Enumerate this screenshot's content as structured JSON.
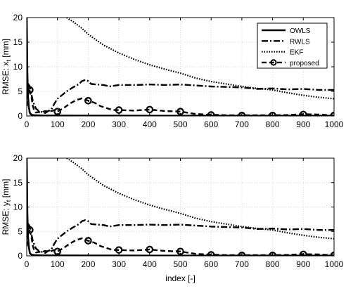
{
  "chart_data": [
    {
      "type": "line",
      "ylabel": "RMSE: x",
      "ylabel_sub": "t",
      "ylabel_unit": "[mm]",
      "xlabel": "",
      "xlim": [
        0,
        1000
      ],
      "ylim": [
        0,
        20
      ],
      "xticks": [
        "0",
        "100",
        "200",
        "300",
        "400",
        "500",
        "600",
        "700",
        "800",
        "900",
        "1000"
      ],
      "yticks": [
        "0",
        "5",
        "10",
        "15",
        "20"
      ],
      "grid": true,
      "legend_position": "top-right",
      "series": [
        {
          "name": "OWLS",
          "style": "solid",
          "points": [
            [
              0,
              20
            ],
            [
              2,
              9
            ],
            [
              4,
              4
            ],
            [
              7,
              1.8
            ],
            [
              10,
              0.6
            ],
            [
              15,
              0.25
            ],
            [
              25,
              0.15
            ],
            [
              50,
              0.1
            ],
            [
              100,
              0.08
            ],
            [
              200,
              0.07
            ],
            [
              300,
              0.06
            ],
            [
              400,
              0.05
            ],
            [
              500,
              0.05
            ],
            [
              600,
              0.05
            ],
            [
              700,
              0.05
            ],
            [
              800,
              0.05
            ],
            [
              900,
              0.05
            ],
            [
              1000,
              0.05
            ]
          ]
        },
        {
          "name": "RWLS",
          "style": "dashdot",
          "points": [
            [
              0,
              4
            ],
            [
              5,
              6.5
            ],
            [
              10,
              6
            ],
            [
              15,
              4.5
            ],
            [
              20,
              3
            ],
            [
              30,
              1.5
            ],
            [
              40,
              1
            ],
            [
              50,
              0.8
            ],
            [
              60,
              0.6
            ],
            [
              70,
              1
            ],
            [
              80,
              1.3
            ],
            [
              90,
              2.5
            ],
            [
              100,
              3.5
            ],
            [
              110,
              4
            ],
            [
              120,
              4.5
            ],
            [
              130,
              5
            ],
            [
              150,
              5.8
            ],
            [
              170,
              6.5
            ],
            [
              180,
              7.1
            ],
            [
              190,
              7.3
            ],
            [
              200,
              7.1
            ],
            [
              210,
              6.5
            ],
            [
              230,
              6.4
            ],
            [
              250,
              6.3
            ],
            [
              270,
              6
            ],
            [
              300,
              6.3
            ],
            [
              350,
              6.3
            ],
            [
              400,
              6.4
            ],
            [
              450,
              6.3
            ],
            [
              500,
              6.4
            ],
            [
              550,
              6.2
            ],
            [
              600,
              6
            ],
            [
              650,
              5.9
            ],
            [
              700,
              5.8
            ],
            [
              750,
              5.5
            ],
            [
              800,
              5.6
            ],
            [
              850,
              5.4
            ],
            [
              900,
              5.5
            ],
            [
              950,
              5.3
            ],
            [
              1000,
              5.3
            ]
          ]
        },
        {
          "name": "EKF",
          "style": "dotted",
          "points": [
            [
              130,
              20
            ],
            [
              150,
              19.2
            ],
            [
              180,
              17.8
            ],
            [
              200,
              16.6
            ],
            [
              250,
              14.4
            ],
            [
              300,
              12.8
            ],
            [
              350,
              11.5
            ],
            [
              400,
              10.4
            ],
            [
              450,
              9.5
            ],
            [
              500,
              8.7
            ],
            [
              550,
              7.7
            ],
            [
              600,
              7
            ],
            [
              650,
              6.5
            ],
            [
              700,
              6
            ],
            [
              750,
              5.6
            ],
            [
              800,
              5.3
            ],
            [
              850,
              4.7
            ],
            [
              900,
              4.2
            ],
            [
              950,
              3.8
            ],
            [
              1000,
              3.5
            ]
          ]
        },
        {
          "name": "proposed",
          "style": "dashed-circle",
          "points": [
            [
              0,
              2
            ],
            [
              3,
              4.5
            ],
            [
              7,
              6
            ],
            [
              10,
              5
            ],
            [
              15,
              4
            ],
            [
              20,
              2
            ],
            [
              25,
              1
            ],
            [
              30,
              0.7
            ],
            [
              40,
              0.8
            ],
            [
              50,
              0.8
            ],
            [
              60,
              1
            ],
            [
              70,
              0.9
            ],
            [
              80,
              1
            ],
            [
              90,
              1.2
            ],
            [
              100,
              0.9
            ],
            [
              120,
              1.6
            ],
            [
              140,
              2.5
            ],
            [
              160,
              3.2
            ],
            [
              180,
              3.6
            ],
            [
              200,
              3.1
            ],
            [
              220,
              2.7
            ],
            [
              240,
              2
            ],
            [
              260,
              1.6
            ],
            [
              280,
              1.2
            ],
            [
              300,
              1.2
            ],
            [
              350,
              1.1
            ],
            [
              400,
              1.3
            ],
            [
              450,
              1
            ],
            [
              500,
              0.9
            ],
            [
              550,
              0.4
            ],
            [
              600,
              0.25
            ],
            [
              650,
              0.15
            ],
            [
              700,
              0.15
            ],
            [
              750,
              0.15
            ],
            [
              800,
              0.15
            ],
            [
              850,
              0.2
            ],
            [
              900,
              0.35
            ],
            [
              950,
              0.3
            ],
            [
              1000,
              0.1
            ]
          ],
          "markers": [
            [
              10,
              5.3
            ],
            [
              100,
              0.9
            ],
            [
              200,
              3.1
            ],
            [
              300,
              1.2
            ],
            [
              400,
              1.3
            ],
            [
              500,
              0.9
            ],
            [
              600,
              0.2
            ],
            [
              700,
              0.1
            ],
            [
              800,
              0.1
            ],
            [
              900,
              0.3
            ],
            [
              1000,
              0.1
            ]
          ]
        }
      ]
    },
    {
      "type": "line",
      "ylabel": "RMSE: y",
      "ylabel_sub": "t",
      "ylabel_unit": "[mm]",
      "xlabel": "index [-]",
      "xlim": [
        0,
        1000
      ],
      "ylim": [
        0,
        20
      ],
      "xticks": [
        "0",
        "100",
        "200",
        "300",
        "400",
        "500",
        "600",
        "700",
        "800",
        "900",
        "1000"
      ],
      "yticks": [
        "0",
        "5",
        "10",
        "15",
        "20"
      ],
      "grid": true,
      "series": [
        {
          "name": "OWLS",
          "style": "solid",
          "points": [
            [
              0,
              20
            ],
            [
              2,
              9
            ],
            [
              4,
              4
            ],
            [
              7,
              1.8
            ],
            [
              10,
              0.6
            ],
            [
              15,
              0.25
            ],
            [
              25,
              0.15
            ],
            [
              50,
              0.1
            ],
            [
              100,
              0.08
            ],
            [
              200,
              0.07
            ],
            [
              300,
              0.06
            ],
            [
              400,
              0.05
            ],
            [
              500,
              0.05
            ],
            [
              600,
              0.05
            ],
            [
              700,
              0.05
            ],
            [
              800,
              0.05
            ],
            [
              900,
              0.05
            ],
            [
              1000,
              0.05
            ]
          ]
        },
        {
          "name": "RWLS",
          "style": "dashdot",
          "points": [
            [
              0,
              4
            ],
            [
              5,
              6.5
            ],
            [
              10,
              6
            ],
            [
              15,
              4.5
            ],
            [
              20,
              3
            ],
            [
              30,
              1.5
            ],
            [
              40,
              1
            ],
            [
              50,
              0.8
            ],
            [
              60,
              0.6
            ],
            [
              70,
              1
            ],
            [
              80,
              1.3
            ],
            [
              90,
              2.5
            ],
            [
              100,
              3.5
            ],
            [
              110,
              4
            ],
            [
              120,
              4.5
            ],
            [
              130,
              5
            ],
            [
              150,
              5.8
            ],
            [
              170,
              6.5
            ],
            [
              180,
              7.1
            ],
            [
              190,
              7.3
            ],
            [
              200,
              7.1
            ],
            [
              210,
              6.5
            ],
            [
              230,
              6.4
            ],
            [
              250,
              6.3
            ],
            [
              270,
              6
            ],
            [
              300,
              6.3
            ],
            [
              350,
              6.3
            ],
            [
              400,
              6.4
            ],
            [
              450,
              6.3
            ],
            [
              500,
              6.4
            ],
            [
              550,
              6.2
            ],
            [
              600,
              6
            ],
            [
              650,
              5.9
            ],
            [
              700,
              5.8
            ],
            [
              750,
              5.5
            ],
            [
              800,
              5.6
            ],
            [
              850,
              5.4
            ],
            [
              900,
              5.5
            ],
            [
              950,
              5.3
            ],
            [
              1000,
              5.3
            ]
          ]
        },
        {
          "name": "EKF",
          "style": "dotted",
          "points": [
            [
              130,
              20
            ],
            [
              150,
              19.2
            ],
            [
              180,
              17.8
            ],
            [
              200,
              16.6
            ],
            [
              250,
              14.4
            ],
            [
              300,
              12.8
            ],
            [
              350,
              11.5
            ],
            [
              400,
              10.4
            ],
            [
              450,
              9.5
            ],
            [
              500,
              8.7
            ],
            [
              550,
              7.7
            ],
            [
              600,
              7
            ],
            [
              650,
              6.5
            ],
            [
              700,
              6
            ],
            [
              750,
              5.6
            ],
            [
              800,
              5.3
            ],
            [
              850,
              4.7
            ],
            [
              900,
              4.2
            ],
            [
              950,
              3.8
            ],
            [
              1000,
              3.5
            ]
          ]
        },
        {
          "name": "proposed",
          "style": "dashed-circle",
          "points": [
            [
              0,
              2
            ],
            [
              3,
              4.5
            ],
            [
              7,
              6
            ],
            [
              10,
              5
            ],
            [
              15,
              4
            ],
            [
              20,
              2
            ],
            [
              25,
              1
            ],
            [
              30,
              0.7
            ],
            [
              40,
              0.8
            ],
            [
              50,
              0.8
            ],
            [
              60,
              1
            ],
            [
              70,
              0.9
            ],
            [
              80,
              1
            ],
            [
              90,
              1.2
            ],
            [
              100,
              0.9
            ],
            [
              120,
              1.6
            ],
            [
              140,
              2.5
            ],
            [
              160,
              3.2
            ],
            [
              180,
              3.6
            ],
            [
              200,
              3.1
            ],
            [
              220,
              2.7
            ],
            [
              240,
              2
            ],
            [
              260,
              1.6
            ],
            [
              280,
              1.2
            ],
            [
              300,
              1.2
            ],
            [
              350,
              1.1
            ],
            [
              400,
              1.3
            ],
            [
              450,
              1
            ],
            [
              500,
              0.9
            ],
            [
              550,
              0.4
            ],
            [
              600,
              0.25
            ],
            [
              650,
              0.15
            ],
            [
              700,
              0.15
            ],
            [
              750,
              0.15
            ],
            [
              800,
              0.15
            ],
            [
              850,
              0.2
            ],
            [
              900,
              0.35
            ],
            [
              950,
              0.3
            ],
            [
              1000,
              0.1
            ]
          ],
          "markers": [
            [
              10,
              5.3
            ],
            [
              100,
              0.9
            ],
            [
              200,
              3.1
            ],
            [
              300,
              1.2
            ],
            [
              400,
              1.3
            ],
            [
              500,
              0.9
            ],
            [
              600,
              0.2
            ],
            [
              700,
              0.1
            ],
            [
              800,
              0.1
            ],
            [
              900,
              0.3
            ],
            [
              1000,
              0.1
            ]
          ]
        }
      ]
    }
  ]
}
